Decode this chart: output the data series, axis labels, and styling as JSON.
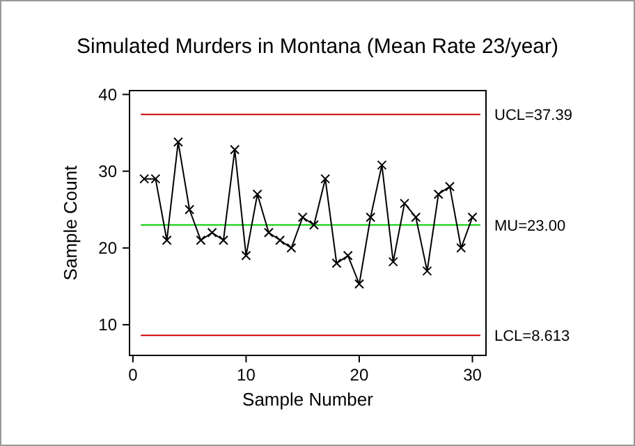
{
  "chart_data": {
    "type": "line",
    "title": "Simulated Murders in Montana (Mean Rate 23/year)",
    "xlabel": "Sample Number",
    "ylabel": "Sample Count",
    "x": [
      1,
      2,
      3,
      4,
      5,
      6,
      7,
      8,
      9,
      10,
      11,
      12,
      13,
      14,
      15,
      16,
      17,
      18,
      19,
      20,
      21,
      22,
      23,
      24,
      25,
      26,
      27,
      28,
      29,
      30
    ],
    "series": [
      {
        "color": "#000000",
        "values": [
          29,
          29,
          21,
          33.8,
          25,
          21,
          22,
          21,
          32.8,
          19,
          27,
          22,
          21,
          20,
          24,
          23,
          29,
          18,
          19,
          15.3,
          24,
          30.8,
          18.2,
          25.8,
          24,
          17,
          27,
          28,
          20,
          24
        ]
      }
    ],
    "xlim": [
      -0.3,
      31.2
    ],
    "xticks": [
      0,
      10,
      20,
      30
    ],
    "ylim": [
      6,
      40.5
    ],
    "yticks": [
      10,
      20,
      30,
      40
    ],
    "ref_lines": [
      {
        "axis": "y",
        "value": 37.39,
        "label": "UCL=37.39",
        "color": "#cc0000"
      },
      {
        "axis": "y",
        "value": 23,
        "label": "MU=23.00",
        "color": "#00cc00"
      },
      {
        "axis": "y",
        "value": 8.613,
        "label": "LCL=8.613",
        "color": "#cc0000"
      }
    ],
    "marker": "cross",
    "line_style": "solid"
  }
}
